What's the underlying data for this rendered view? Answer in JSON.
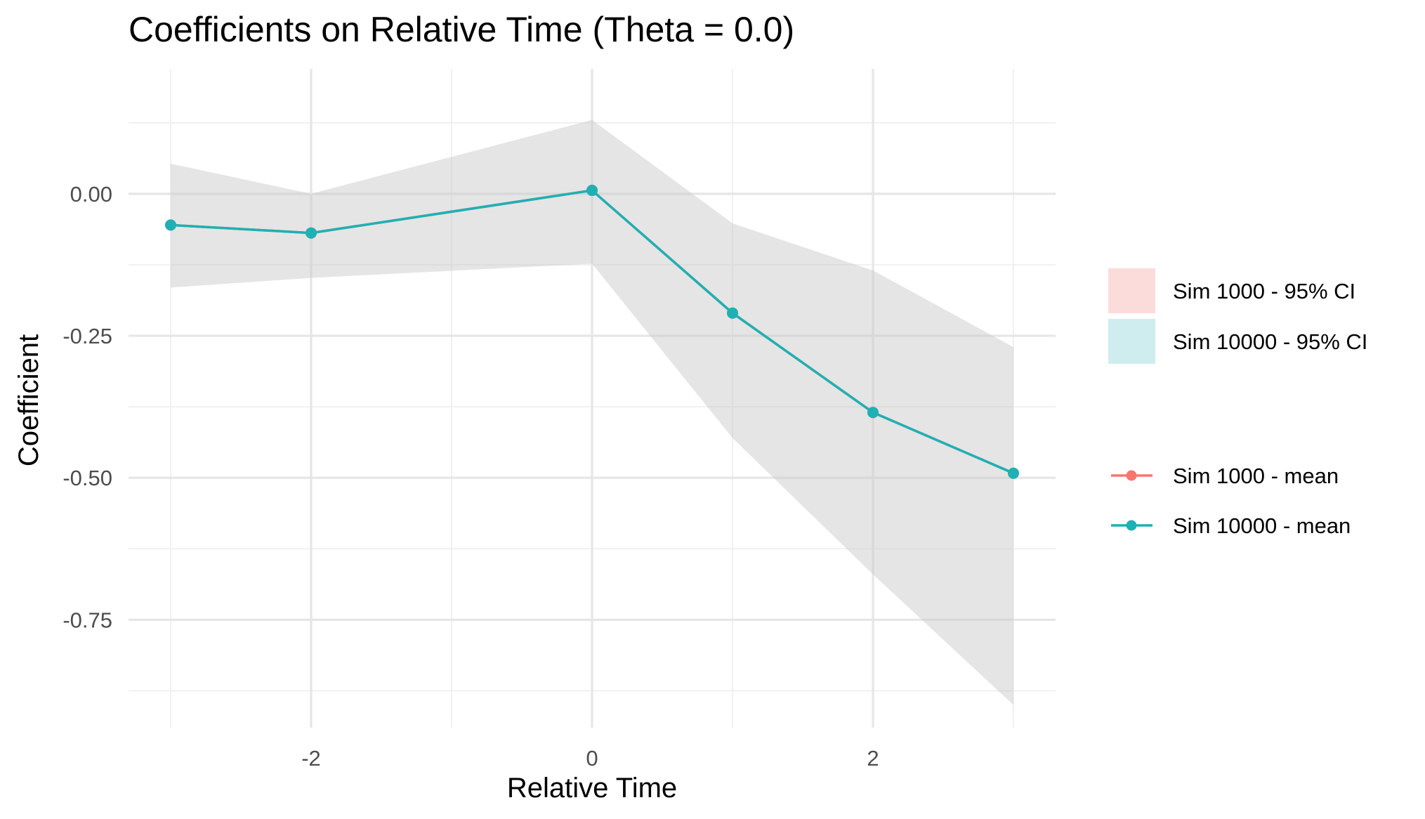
{
  "chart_data": {
    "type": "line",
    "title": "Coefficients on Relative Time (Theta = 0.0)",
    "xlabel": "Relative Time",
    "ylabel": "Coefficient",
    "xlim": [
      -3.3,
      3.3
    ],
    "ylim": [
      -0.94,
      0.22
    ],
    "x_ticks": [
      -2,
      0,
      2
    ],
    "x_tick_labels": [
      "-2",
      "0",
      "2"
    ],
    "y_ticks": [
      0.0,
      -0.25,
      -0.5,
      -0.75
    ],
    "y_tick_labels": [
      "0.00",
      "-0.25",
      "-0.50",
      "-0.75"
    ],
    "x_gridlines": [
      -3,
      -2,
      -1,
      0,
      1,
      2,
      3
    ],
    "y_gridlines": [
      0.125,
      0.0,
      -0.125,
      -0.25,
      -0.375,
      -0.5,
      -0.625,
      -0.75,
      -0.875
    ],
    "grid": true,
    "legend_position": "right",
    "bands": [
      {
        "name": "Sim 1000 - 95% CI",
        "color": "#F8766D",
        "x": [
          -3,
          -2,
          0,
          1,
          2,
          3
        ],
        "lower": [
          -0.165,
          -0.148,
          -0.123,
          -0.43,
          -0.67,
          -0.9
        ],
        "upper": [
          0.053,
          0.0,
          0.13,
          -0.052,
          -0.135,
          -0.27
        ]
      },
      {
        "name": "Sim 10000 - 95% CI",
        "color": "#00BFC4",
        "x": [
          -3,
          -2,
          0,
          1,
          2,
          3
        ],
        "lower": [
          -0.165,
          -0.148,
          -0.123,
          -0.43,
          -0.67,
          -0.9
        ],
        "upper": [
          0.053,
          0.0,
          0.13,
          -0.052,
          -0.135,
          -0.27
        ]
      }
    ],
    "series": [
      {
        "name": "Sim 1000 - mean",
        "color": "#F8766D",
        "x": [
          -3,
          -2,
          0,
          1,
          2,
          3
        ],
        "values": [
          -0.055,
          -0.069,
          0.006,
          -0.21,
          -0.385,
          -0.492
        ]
      },
      {
        "name": "Sim 10000 - mean",
        "color": "#1FB0B4",
        "x": [
          -3,
          -2,
          0,
          1,
          2,
          3
        ],
        "values": [
          -0.055,
          -0.069,
          0.006,
          -0.21,
          -0.385,
          -0.492
        ]
      }
    ],
    "colors": {
      "band_fill": "#C8CACA",
      "grid_major": "#E6E6E6",
      "grid_minor": "#EFEFEF",
      "sim1000": "#F8766D",
      "sim10000": "#00BFC4",
      "sim1000_fill": "#FBDCDA",
      "sim10000_fill": "#CFEDEE"
    }
  }
}
